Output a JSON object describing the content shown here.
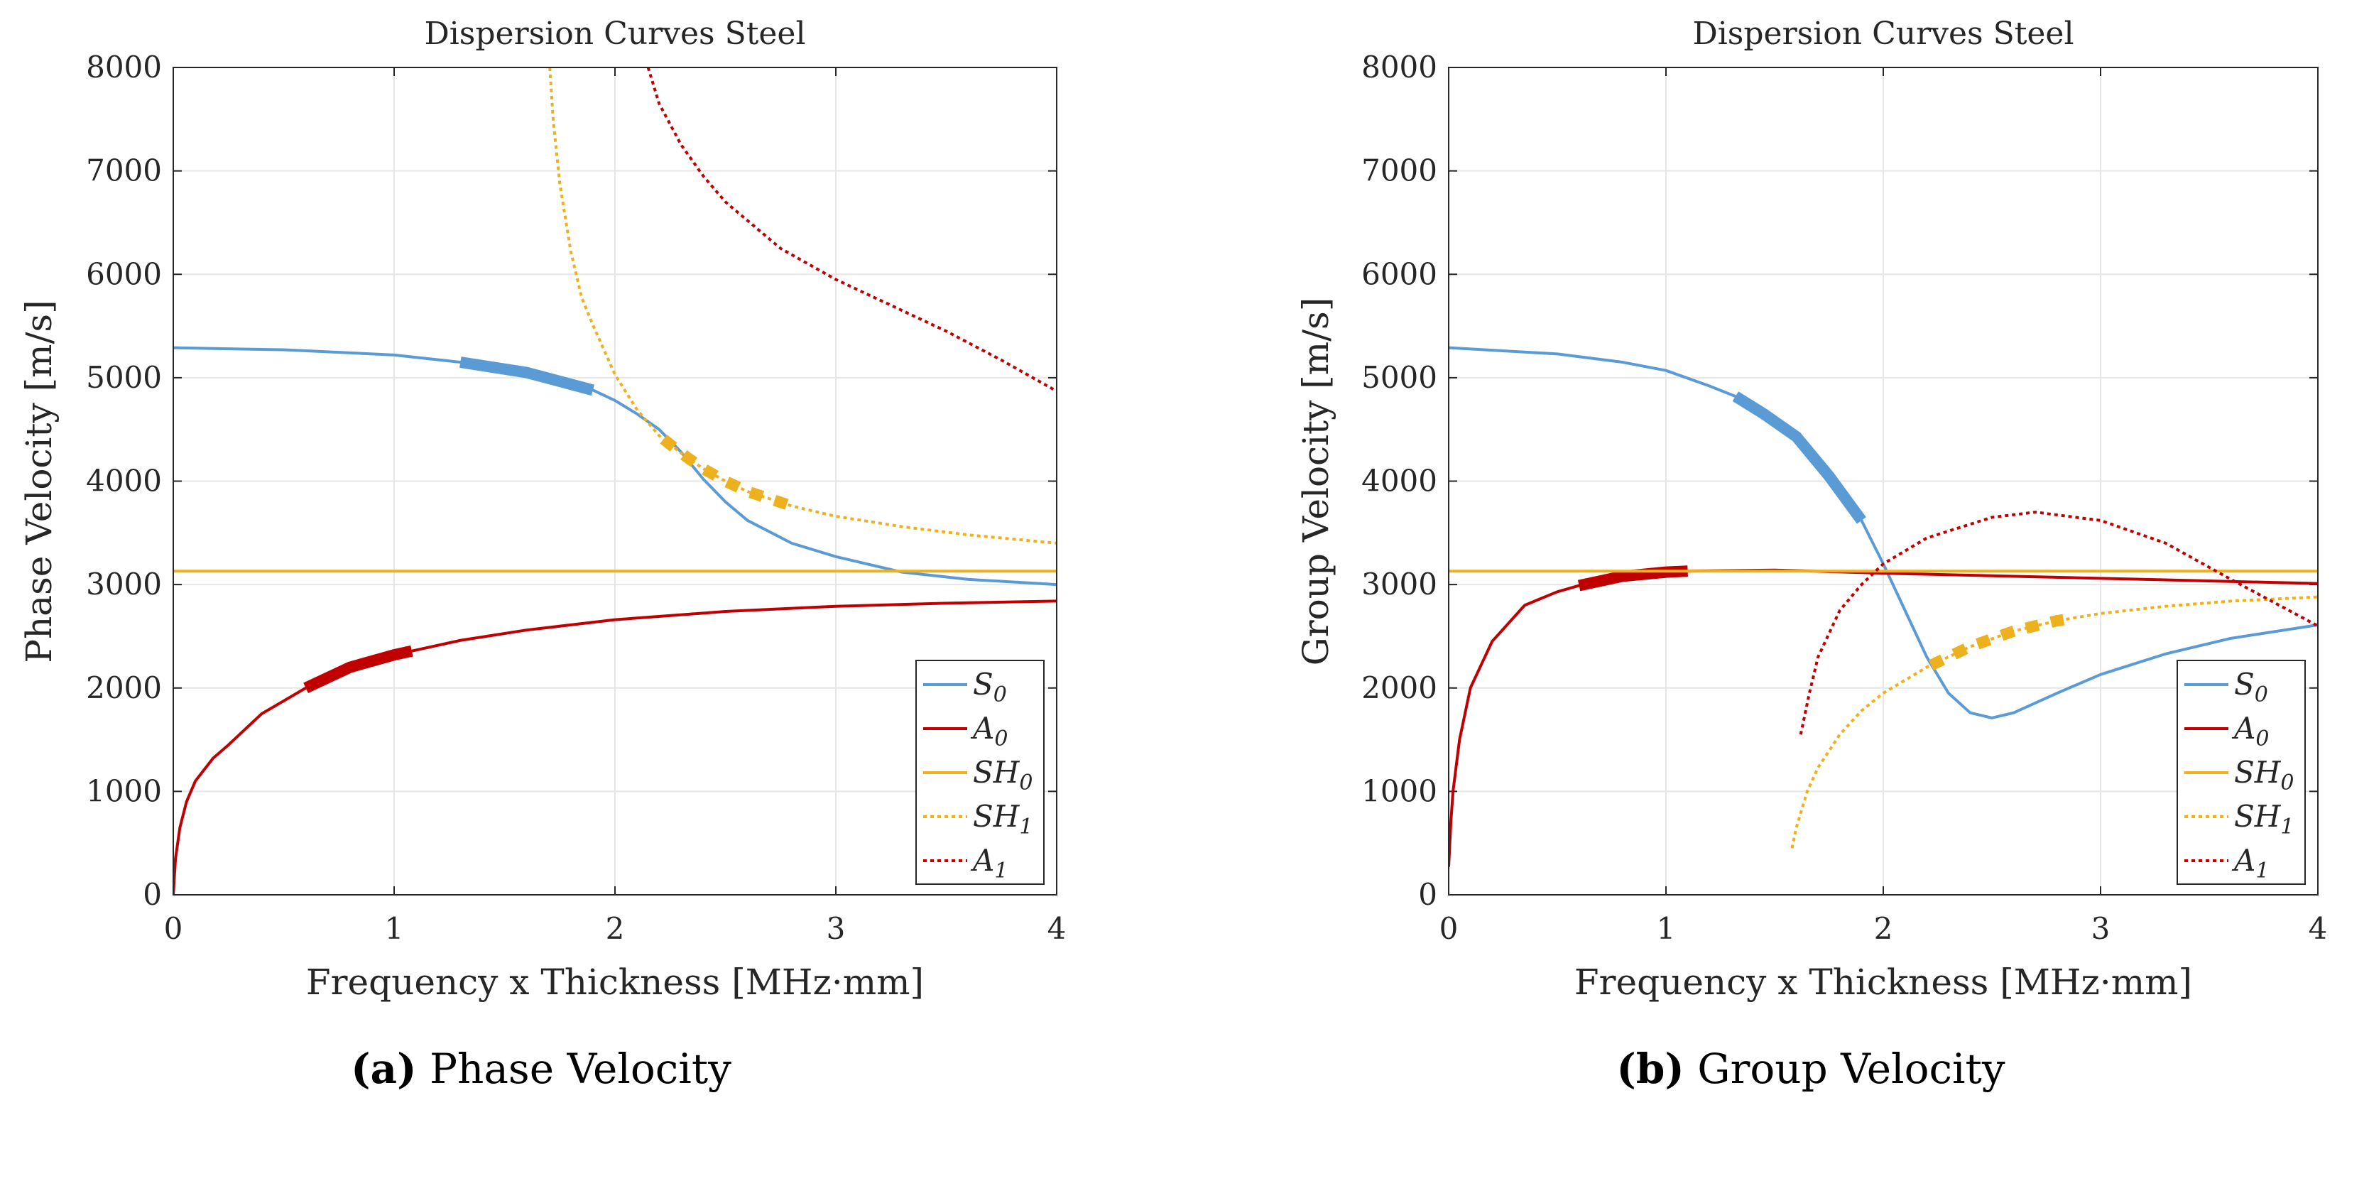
{
  "colors": {
    "S0": "#5b9bd5",
    "A0": "#c00000",
    "SH0": "#edb120",
    "SH1": "#edb120",
    "A1": "#c00000"
  },
  "chart_data": [
    {
      "type": "line",
      "caption_letter": "(a)",
      "caption_text": "Phase Velocity",
      "title": "Dispersion Curves Steel",
      "xlabel": "Frequency x Thickness [MHz·mm]",
      "ylabel": "Phase Velocity [m/s]",
      "xlim": [
        0,
        4
      ],
      "ylim": [
        0,
        8000
      ],
      "xticks": [
        "0",
        "1",
        "2",
        "3",
        "4"
      ],
      "yticks": [
        "0",
        "1000",
        "2000",
        "3000",
        "4000",
        "5000",
        "6000",
        "7000",
        "8000"
      ],
      "grid": true,
      "legend_position": "bottom-right",
      "series": [
        {
          "name": "S0",
          "label": "S",
          "sub": "0",
          "style": "solid",
          "highlight": [
            1.3,
            1.9
          ],
          "x": [
            0,
            0.5,
            1,
            1.3,
            1.6,
            1.9,
            2.0,
            2.1,
            2.2,
            2.3,
            2.4,
            2.5,
            2.6,
            2.8,
            3.0,
            3.3,
            3.6,
            4
          ],
          "y": [
            5290,
            5270,
            5220,
            5150,
            5050,
            4880,
            4780,
            4650,
            4500,
            4280,
            4020,
            3800,
            3620,
            3400,
            3270,
            3120,
            3050,
            3000
          ]
        },
        {
          "name": "A0",
          "label": "A",
          "sub": "0",
          "style": "solid",
          "highlight": [
            0.6,
            1.08
          ],
          "x": [
            0,
            0.01,
            0.03,
            0.06,
            0.1,
            0.18,
            0.25,
            0.4,
            0.6,
            0.8,
            1.0,
            1.3,
            1.6,
            2,
            2.5,
            3,
            3.5,
            4
          ],
          "y": [
            0,
            350,
            650,
            900,
            1100,
            1320,
            1450,
            1750,
            2000,
            2200,
            2320,
            2460,
            2560,
            2660,
            2740,
            2790,
            2820,
            2840
          ]
        },
        {
          "name": "SH0",
          "label": "SH",
          "sub": "0",
          "style": "solid",
          "x": [
            0,
            4
          ],
          "y": [
            3130,
            3130
          ]
        },
        {
          "name": "SH1",
          "label": "SH",
          "sub": "1",
          "style": "dotted",
          "highlight": [
            2.22,
            2.82
          ],
          "x": [
            1.705,
            1.72,
            1.75,
            1.8,
            1.85,
            1.9,
            2.0,
            2.1,
            2.2,
            2.3,
            2.4,
            2.5,
            2.6,
            2.8,
            3.0,
            3.3,
            3.6,
            4
          ],
          "y": [
            8000,
            7500,
            6880,
            6220,
            5770,
            5510,
            5030,
            4690,
            4440,
            4270,
            4120,
            4000,
            3900,
            3760,
            3660,
            3560,
            3480,
            3400
          ]
        },
        {
          "name": "A1",
          "label": "A",
          "sub": "1",
          "style": "dotted",
          "x": [
            2.15,
            2.2,
            2.3,
            2.4,
            2.5,
            2.75,
            3,
            3.25,
            3.5,
            3.75,
            4
          ],
          "y": [
            8000,
            7650,
            7250,
            6950,
            6700,
            6250,
            5950,
            5700,
            5450,
            5170,
            4870
          ]
        }
      ]
    },
    {
      "type": "line",
      "caption_letter": "(b)",
      "caption_text": "Group Velocity",
      "title": "Dispersion Curves Steel",
      "xlabel": "Frequency x Thickness [MHz·mm]",
      "ylabel": "Group Velocity [m/s]",
      "xlim": [
        0,
        4
      ],
      "ylim": [
        0,
        8000
      ],
      "xticks": [
        "0",
        "1",
        "2",
        "3",
        "4"
      ],
      "yticks": [
        "0",
        "1000",
        "2000",
        "3000",
        "4000",
        "5000",
        "6000",
        "7000",
        "8000"
      ],
      "grid": true,
      "legend_position": "bottom-right",
      "series": [
        {
          "name": "S0",
          "label": "S",
          "sub": "0",
          "style": "solid",
          "highlight": [
            1.32,
            1.9
          ],
          "x": [
            0,
            0.5,
            0.8,
            1,
            1.2,
            1.32,
            1.45,
            1.6,
            1.75,
            1.9,
            2.0,
            2.1,
            2.2,
            2.3,
            2.4,
            2.5,
            2.6,
            2.8,
            3,
            3.3,
            3.6,
            4
          ],
          "y": [
            5290,
            5230,
            5150,
            5070,
            4920,
            4820,
            4650,
            4430,
            4050,
            3620,
            3200,
            2750,
            2300,
            1950,
            1760,
            1710,
            1760,
            1950,
            2130,
            2330,
            2480,
            2610
          ]
        },
        {
          "name": "A0",
          "label": "A",
          "sub": "0",
          "style": "solid",
          "highlight": [
            0.6,
            1.1
          ],
          "x": [
            0,
            0.01,
            0.02,
            0.05,
            0.1,
            0.2,
            0.35,
            0.5,
            0.6,
            0.8,
            1.0,
            1.1,
            1.5,
            2,
            3,
            4
          ],
          "y": [
            270,
            700,
            1000,
            1500,
            2000,
            2450,
            2800,
            2930,
            2990,
            3080,
            3120,
            3130,
            3140,
            3110,
            3060,
            3010
          ]
        },
        {
          "name": "SH0",
          "label": "SH",
          "sub": "0",
          "style": "solid",
          "x": [
            0,
            4
          ],
          "y": [
            3130,
            3130
          ]
        },
        {
          "name": "SH1",
          "label": "SH",
          "sub": "1",
          "style": "dotted",
          "highlight": [
            2.22,
            2.87
          ],
          "x": [
            1.58,
            1.6,
            1.65,
            1.7,
            1.8,
            1.9,
            2.0,
            2.2,
            2.4,
            2.6,
            2.8,
            3.0,
            3.3,
            3.6,
            4
          ],
          "y": [
            450,
            650,
            1000,
            1230,
            1550,
            1780,
            1950,
            2200,
            2400,
            2550,
            2650,
            2720,
            2790,
            2840,
            2880
          ]
        },
        {
          "name": "A1",
          "label": "A",
          "sub": "1",
          "style": "dotted",
          "x": [
            1.62,
            1.66,
            1.7,
            1.8,
            1.9,
            2.0,
            2.2,
            2.5,
            2.7,
            3.0,
            3.3,
            3.6,
            4
          ],
          "y": [
            1550,
            1950,
            2300,
            2750,
            3000,
            3200,
            3450,
            3650,
            3700,
            3620,
            3400,
            3050,
            2600
          ]
        }
      ]
    }
  ]
}
